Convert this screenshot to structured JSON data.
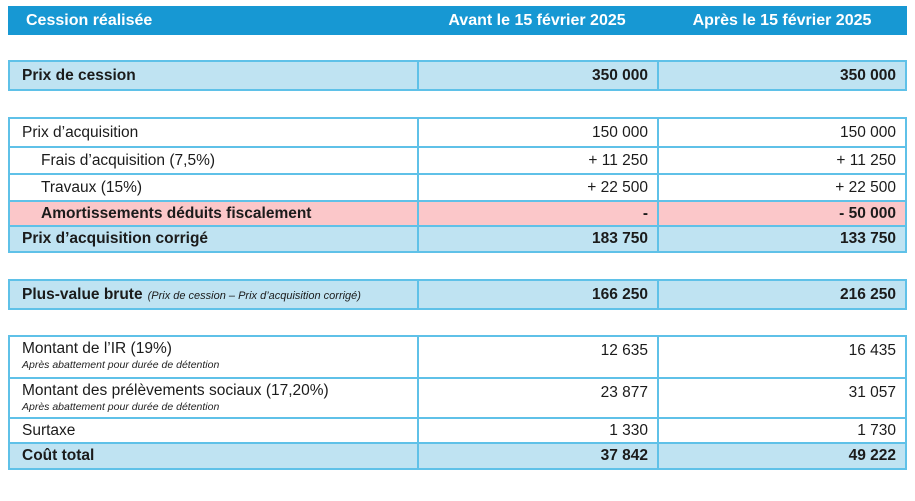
{
  "colors": {
    "header_bg": "#1798D3",
    "highlight_bg": "#BFE3F2",
    "warning_bg": "#FBC7C9",
    "grid_line": "#5FC1E8",
    "header_text": "#FFFFFF",
    "text": "#1b1b1b"
  },
  "table": {
    "header": {
      "label": "Cession réalisée",
      "before": "Avant le 15 février 2025",
      "after": "Après le 15 février 2025"
    },
    "blocks": [
      {
        "name": "sale-price",
        "rows": [
          {
            "label": "Prix de cession",
            "before": "350 000",
            "after": "350 000"
          }
        ]
      },
      {
        "name": "acquisition",
        "rows": [
          {
            "label": "Prix d’acquisition",
            "before": "150 000",
            "after": "150 000"
          },
          {
            "label": "Frais d’acquisition (7,5%)",
            "before": "+ 11 250",
            "after": "+ 11 250"
          },
          {
            "label": "Travaux (15%)",
            "before": "+ 22 500",
            "after": "+ 22 500"
          },
          {
            "label": "Amortissements déduits fiscalement",
            "before": "-",
            "after": "- 50 000"
          },
          {
            "label": "Prix d’acquisition corrigé",
            "before": "183 750",
            "after": "133 750"
          }
        ]
      },
      {
        "name": "gross-gain",
        "rows": [
          {
            "label": "Plus-value brute",
            "note": "(Prix de cession – Prix d’acquisition corrigé)",
            "before": "166 250",
            "after": "216 250"
          }
        ]
      },
      {
        "name": "taxes",
        "rows": [
          {
            "label": "Montant de l’IR (19%)",
            "sub": "Après abattement pour durée de détention",
            "before": "12 635",
            "after": "16 435"
          },
          {
            "label": "Montant des prélèvements sociaux (17,20%)",
            "sub": "Après abattement pour durée de détention",
            "before": "23 877",
            "after": "31 057"
          },
          {
            "label": "Surtaxe",
            "before": "1 330",
            "after": "1 730"
          },
          {
            "label": "Coût total",
            "before": "37 842",
            "after": "49 222"
          }
        ]
      }
    ]
  }
}
